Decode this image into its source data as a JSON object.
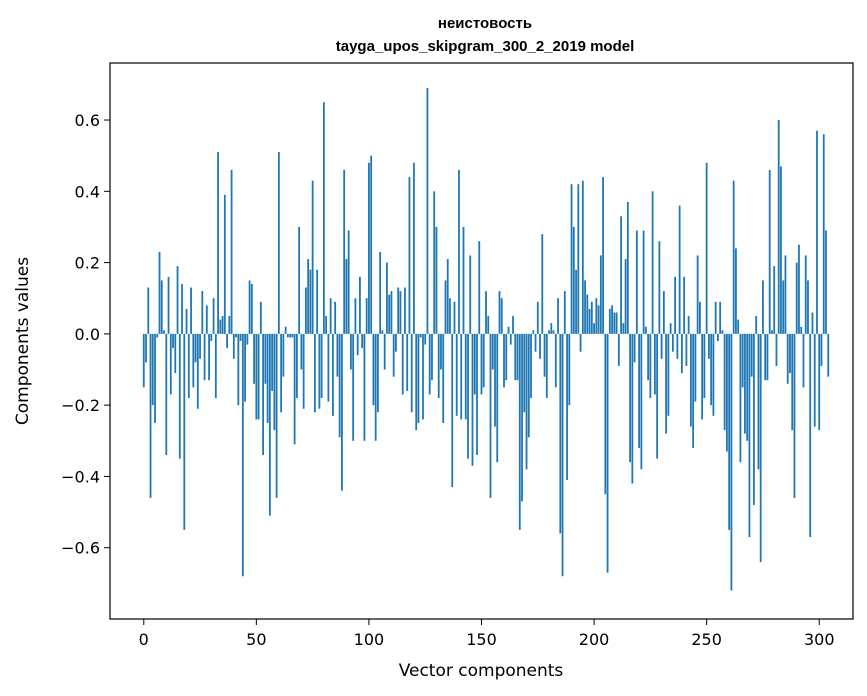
{
  "chart_data": {
    "type": "bar",
    "title": "неистовость",
    "subtitle": "tayga_upos_skipgram_300_2_2019 model",
    "xlabel": "Vector components",
    "ylabel": "Components values",
    "xlim": [
      -15,
      315
    ],
    "ylim": [
      -0.8,
      0.76
    ],
    "xticks": [
      0,
      50,
      100,
      150,
      200,
      250,
      300
    ],
    "xtick_labels": [
      "0",
      "50",
      "100",
      "150",
      "200",
      "250",
      "300"
    ],
    "yticks": [
      -0.6,
      -0.4,
      -0.2,
      0.0,
      0.2,
      0.4,
      0.6
    ],
    "ytick_labels": [
      "−0.6",
      "−0.4",
      "−0.2",
      "0.0",
      "0.2",
      "0.4",
      "0.6"
    ],
    "grid": false,
    "bar_color": "#1f77b4",
    "x_start": 0,
    "values": [
      -0.15,
      -0.08,
      0.13,
      -0.46,
      -0.2,
      -0.25,
      -0.01,
      0.23,
      0.15,
      0.01,
      -0.34,
      0.16,
      -0.17,
      -0.04,
      -0.11,
      0.19,
      -0.35,
      0.14,
      -0.55,
      0.07,
      -0.18,
      0.13,
      -0.15,
      -0.08,
      -0.21,
      -0.07,
      0.12,
      -0.13,
      0.08,
      -0.13,
      -0.02,
      0.1,
      -0.18,
      0.51,
      0.04,
      0.05,
      0.39,
      -0.04,
      0.05,
      0.46,
      -0.07,
      -0.01,
      -0.2,
      -0.02,
      -0.68,
      -0.19,
      -0.03,
      0.15,
      0.14,
      -0.14,
      -0.24,
      -0.24,
      0.09,
      -0.34,
      -0.14,
      -0.25,
      -0.51,
      -0.16,
      -0.27,
      -0.46,
      0.51,
      -0.22,
      -0.12,
      0.02,
      -0.01,
      -0.01,
      -0.01,
      -0.31,
      -0.18,
      0.3,
      -0.1,
      -0.21,
      0.13,
      0.21,
      0.18,
      0.43,
      -0.22,
      0.18,
      -0.21,
      -0.18,
      0.65,
      0.05,
      -0.19,
      0.1,
      -0.23,
      0.09,
      -0.12,
      -0.29,
      -0.44,
      0.46,
      0.21,
      0.29,
      -0.1,
      -0.3,
      0.1,
      -0.06,
      0.16,
      -0.04,
      -0.3,
      0.1,
      0.48,
      0.5,
      -0.2,
      -0.3,
      -0.22,
      0.23,
      0.01,
      -0.1,
      0.2,
      0.11,
      0.12,
      -0.12,
      -0.05,
      0.13,
      0.12,
      -0.17,
      0.13,
      -0.16,
      0.44,
      -0.22,
      0.48,
      -0.27,
      -0.25,
      -0.01,
      -0.24,
      -0.03,
      0.69,
      -0.17,
      -0.13,
      0.4,
      0.3,
      -0.18,
      -0.1,
      -0.25,
      0.15,
      0.21,
      0.1,
      -0.43,
      0.09,
      -0.23,
      0.46,
      -0.24,
      0.3,
      -0.24,
      -0.35,
      0.22,
      -0.37,
      -0.17,
      -0.34,
      0.26,
      -0.17,
      -0.15,
      0.12,
      0.05,
      -0.46,
      -0.1,
      -0.26,
      -0.36,
      0.12,
      0.1,
      -0.15,
      -0.13,
      0.02,
      -0.03,
      0.05,
      -0.13,
      -0.13,
      -0.55,
      -0.47,
      -0.22,
      -0.38,
      -0.29,
      -0.18,
      0.01,
      -0.05,
      0.09,
      -0.07,
      0.28,
      -0.12,
      -0.18,
      0.01,
      0.03,
      0.01,
      -0.15,
      0.1,
      -0.56,
      -0.68,
      0.12,
      -0.41,
      -0.2,
      0.42,
      0.3,
      0.18,
      0.42,
      -0.05,
      0.43,
      0.15,
      0.11,
      0.07,
      0.09,
      0.03,
      0.1,
      0.08,
      0.22,
      0.44,
      -0.45,
      -0.67,
      0.07,
      0.08,
      0.06,
      0.06,
      -0.09,
      0.33,
      0.03,
      0.21,
      0.37,
      -0.36,
      -0.42,
      -0.08,
      0.29,
      -0.32,
      -0.38,
      0.29,
      0.02,
      -0.13,
      -0.18,
      0.4,
      -0.17,
      -0.35,
      0.26,
      -0.07,
      0.12,
      -0.28,
      -0.23,
      0.03,
      -0.05,
      0.16,
      -0.07,
      0.36,
      -0.11,
      0.16,
      -0.09,
      0.05,
      -0.26,
      -0.32,
      -0.19,
      0.22,
      0.09,
      -0.24,
      -0.18,
      0.48,
      -0.07,
      -0.2,
      -0.23,
      0.09,
      -0.02,
      0.09,
      0.01,
      -0.27,
      -0.33,
      -0.55,
      -0.72,
      0.43,
      0.24,
      0.04,
      -0.36,
      -0.15,
      -0.28,
      -0.3,
      -0.57,
      -0.12,
      -0.48,
      0.05,
      -0.38,
      -0.64,
      0.15,
      -0.13,
      -0.13,
      0.46,
      0.01,
      0.19,
      -0.09,
      0.6,
      0.47,
      0.15,
      0.22,
      -0.14,
      -0.11,
      -0.27,
      -0.46,
      0.2,
      0.25,
      0.02,
      -0.15,
      0.22,
      0.15,
      -0.57,
      0.06,
      -0.26,
      0.57,
      -0.27,
      -0.09,
      0.56,
      0.29,
      -0.12
    ]
  }
}
